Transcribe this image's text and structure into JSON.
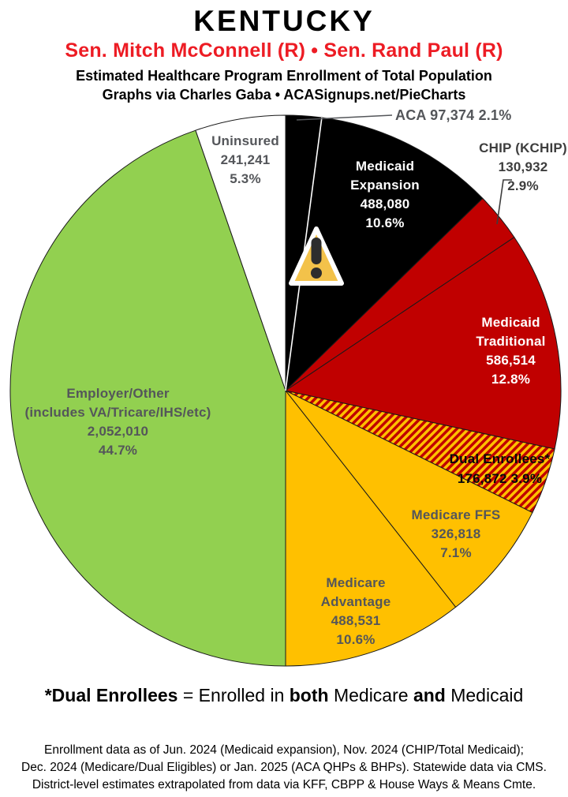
{
  "header": {
    "state": "KENTUCKY",
    "senators": "Sen. Mitch McConnell (R) • Sen. Rand Paul (R)",
    "senators_color": "#ED1C24",
    "subtitle1": "Estimated Healthcare Program Enrollment of Total Population",
    "subtitle2": "Graphs via Charles Gaba   •   ACASignups.net/PieCharts"
  },
  "chart_data": {
    "type": "pie",
    "title": "Estimated Healthcare Program Enrollment of Total Population",
    "start_angle": "12 o'clock, clockwise",
    "white_divider_after_index": 0,
    "hatch_colors": [
      "#C00000",
      "#FFC000"
    ],
    "slices": [
      {
        "name": "ACA",
        "value": "97,374",
        "pct": "2.1%",
        "fill": "#000000",
        "label_lines": [
          "ACA 97,374 2.1%"
        ]
      },
      {
        "name": "Medicaid Expansion",
        "value": "488,080",
        "pct": "10.6%",
        "fill": "#000000",
        "label_lines": [
          "Medicaid",
          "Expansion",
          "488,080",
          "10.6%"
        ]
      },
      {
        "name": "CHIP (KCHIP)",
        "value": "130,932",
        "pct": "2.9%",
        "fill": "#C00000",
        "label_lines": [
          "CHIP (KCHIP)",
          "130,932",
          "2.9%"
        ]
      },
      {
        "name": "Medicaid Traditional",
        "value": "586,514",
        "pct": "12.8%",
        "fill": "#C00000",
        "label_lines": [
          "Medicaid",
          "Traditional",
          "586,514",
          "12.8%"
        ]
      },
      {
        "name": "Dual Enrollees*",
        "value": "176,872",
        "pct": "3.9%",
        "fill": "hatch",
        "label_lines": [
          "Dual Enrollees*",
          "176,872 3.9%"
        ]
      },
      {
        "name": "Medicare FFS",
        "value": "326,818",
        "pct": "7.1%",
        "fill": "#FFC000",
        "label_lines": [
          "Medicare FFS",
          "326,818",
          "7.1%"
        ]
      },
      {
        "name": "Medicare Advantage",
        "value": "488,531",
        "pct": "10.6%",
        "fill": "#FFC000",
        "label_lines": [
          "Medicare",
          "Advantage",
          "488,531",
          "10.6%"
        ]
      },
      {
        "name": "Employer/Other",
        "value": "2,052,010",
        "pct": "44.7%",
        "fill": "#92D050",
        "label_lines": [
          "Employer/Other",
          "(includes VA/Tricare/IHS/etc)",
          "2,052,010",
          "44.7%"
        ]
      },
      {
        "name": "Uninsured",
        "value": "241,241",
        "pct": "5.3%",
        "fill": "#FFFFFF",
        "label_lines": [
          "Uninsured",
          "241,241",
          "5.3%"
        ]
      }
    ],
    "warning_icon": "warning-triangle-over-medicaid-expansion"
  },
  "footnote": {
    "parts": [
      {
        "text": "*Dual Enrollees"
      },
      {
        "text": " = Enrolled in "
      },
      {
        "text": "both"
      },
      {
        "text": " Medicare "
      },
      {
        "text": "and"
      },
      {
        "text": " Medicaid"
      }
    ]
  },
  "footer": {
    "lines": [
      "Enrollment data as of Jun. 2024 (Medicaid expansion), Nov. 2024 (CHIP/Total Medicaid);",
      "Dec. 2024 (Medicare/Dual Eligibles) or Jan. 2025 (ACA QHPs & BHPs). Statewide data via CMS.",
      "District-level estimates extrapolated from data via KFF, CBPP & House Ways & Means Cmte."
    ]
  }
}
